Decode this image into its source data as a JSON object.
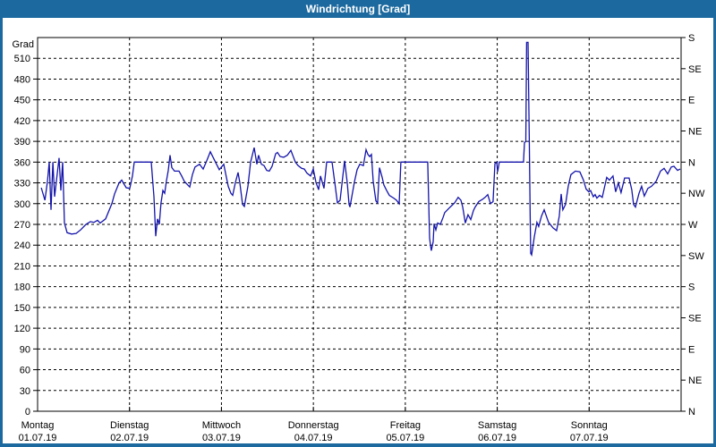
{
  "window": {
    "title": "Windrichtung [Grad]"
  },
  "colors": {
    "titlebar": "#1c699f",
    "frame": "#1c699f",
    "background": "#ffffff",
    "line": "#1414aa",
    "grid": "#000000",
    "text": "#000000"
  },
  "chart_data": {
    "type": "line",
    "title": "Windrichtung [Grad]",
    "ylabel": "Grad",
    "ylim": [
      0,
      540
    ],
    "y_tick_step": 30,
    "y_ticks_left": [
      0,
      30,
      60,
      90,
      120,
      150,
      180,
      210,
      240,
      270,
      300,
      330,
      360,
      390,
      420,
      450,
      480,
      510
    ],
    "compass_labels_bottom_to_top": [
      "N",
      "NE",
      "E",
      "SE",
      "S",
      "SW",
      "W",
      "NW",
      "N",
      "NE",
      "E",
      "SE",
      "S"
    ],
    "compass_step_deg": 45,
    "grid": "dashed",
    "x_days": [
      {
        "label": "Montag",
        "date": "01.07.19"
      },
      {
        "label": "Dienstag",
        "date": "02.07.19"
      },
      {
        "label": "Mittwoch",
        "date": "03.07.19"
      },
      {
        "label": "Donnerstag",
        "date": "04.07.19"
      },
      {
        "label": "Freitag",
        "date": "05.07.19"
      },
      {
        "label": "Samstag",
        "date": "06.07.19"
      },
      {
        "label": "Sonntag",
        "date": "07.07.19"
      }
    ],
    "series": [
      {
        "name": "Windrichtung",
        "unit": "Grad",
        "points": [
          [
            0.04,
            323
          ],
          [
            0.08,
            305
          ],
          [
            0.107,
            332
          ],
          [
            0.127,
            360
          ],
          [
            0.146,
            291
          ],
          [
            0.166,
            360
          ],
          [
            0.185,
            310
          ],
          [
            0.234,
            366
          ],
          [
            0.253,
            319
          ],
          [
            0.273,
            360
          ],
          [
            0.292,
            272
          ],
          [
            0.321,
            258
          ],
          [
            0.37,
            256
          ],
          [
            0.419,
            257
          ],
          [
            0.467,
            262
          ],
          [
            0.526,
            270
          ],
          [
            0.574,
            274
          ],
          [
            0.613,
            273
          ],
          [
            0.652,
            276
          ],
          [
            0.681,
            272
          ],
          [
            0.74,
            278
          ],
          [
            0.808,
            300
          ],
          [
            0.837,
            314
          ],
          [
            0.886,
            330
          ],
          [
            0.915,
            334
          ],
          [
            0.964,
            323
          ],
          [
            1.003,
            322
          ],
          [
            1.032,
            340
          ],
          [
            1.051,
            360
          ],
          [
            1.236,
            360
          ],
          [
            1.266,
            310
          ],
          [
            1.285,
            253
          ],
          [
            1.305,
            278
          ],
          [
            1.324,
            270
          ],
          [
            1.343,
            301
          ],
          [
            1.363,
            319
          ],
          [
            1.382,
            315
          ],
          [
            1.402,
            333
          ],
          [
            1.421,
            348
          ],
          [
            1.441,
            370
          ],
          [
            1.46,
            352
          ],
          [
            1.49,
            347
          ],
          [
            1.538,
            347
          ],
          [
            1.567,
            340
          ],
          [
            1.597,
            332
          ],
          [
            1.626,
            328
          ],
          [
            1.655,
            324
          ],
          [
            1.684,
            342
          ],
          [
            1.713,
            353
          ],
          [
            1.762,
            357
          ],
          [
            1.801,
            350
          ],
          [
            1.84,
            362
          ],
          [
            1.879,
            375
          ],
          [
            1.928,
            362
          ],
          [
            1.976,
            349
          ],
          [
            2.025,
            357
          ],
          [
            2.074,
            325
          ],
          [
            2.103,
            315
          ],
          [
            2.122,
            312
          ],
          [
            2.151,
            330
          ],
          [
            2.181,
            345
          ],
          [
            2.2,
            330
          ],
          [
            2.229,
            299
          ],
          [
            2.249,
            296
          ],
          [
            2.288,
            325
          ],
          [
            2.317,
            360
          ],
          [
            2.356,
            381
          ],
          [
            2.385,
            357
          ],
          [
            2.404,
            370
          ],
          [
            2.434,
            357
          ],
          [
            2.463,
            355
          ],
          [
            2.492,
            348
          ],
          [
            2.521,
            347
          ],
          [
            2.551,
            354
          ],
          [
            2.59,
            372
          ],
          [
            2.609,
            374
          ],
          [
            2.638,
            368
          ],
          [
            2.677,
            367
          ],
          [
            2.716,
            370
          ],
          [
            2.755,
            377
          ],
          [
            2.804,
            360
          ],
          [
            2.833,
            355
          ],
          [
            2.872,
            351
          ],
          [
            2.901,
            350
          ],
          [
            2.93,
            344
          ],
          [
            2.969,
            340
          ],
          [
            2.999,
            350
          ],
          [
            3.028,
            331
          ],
          [
            3.057,
            320
          ],
          [
            3.077,
            340
          ],
          [
            3.115,
            322
          ],
          [
            3.145,
            360
          ],
          [
            3.203,
            360
          ],
          [
            3.232,
            331
          ],
          [
            3.261,
            301
          ],
          [
            3.291,
            305
          ],
          [
            3.339,
            362
          ],
          [
            3.369,
            330
          ],
          [
            3.388,
            299
          ],
          [
            3.398,
            295
          ],
          [
            3.447,
            332
          ],
          [
            3.476,
            349
          ],
          [
            3.505,
            357
          ],
          [
            3.544,
            355
          ],
          [
            3.573,
            378
          ],
          [
            3.593,
            371
          ],
          [
            3.612,
            368
          ],
          [
            3.631,
            371
          ],
          [
            3.651,
            332
          ],
          [
            3.68,
            304
          ],
          [
            3.699,
            301
          ],
          [
            3.719,
            352
          ],
          [
            3.748,
            338
          ],
          [
            3.767,
            327
          ],
          [
            3.797,
            319
          ],
          [
            3.826,
            312
          ],
          [
            3.874,
            308
          ],
          [
            3.903,
            305
          ],
          [
            3.933,
            300
          ],
          [
            3.952,
            360
          ],
          [
            3.971,
            360
          ],
          [
            4.244,
            360
          ],
          [
            4.264,
            250
          ],
          [
            4.274,
            240
          ],
          [
            4.283,
            232
          ],
          [
            4.303,
            245
          ],
          [
            4.313,
            271
          ],
          [
            4.332,
            262
          ],
          [
            4.352,
            272
          ],
          [
            4.381,
            270
          ],
          [
            4.41,
            280
          ],
          [
            4.429,
            287
          ],
          [
            4.488,
            295
          ],
          [
            4.536,
            301
          ],
          [
            4.575,
            309
          ],
          [
            4.605,
            305
          ],
          [
            4.624,
            295
          ],
          [
            4.653,
            272
          ],
          [
            4.682,
            284
          ],
          [
            4.712,
            277
          ],
          [
            4.741,
            290
          ],
          [
            4.76,
            295
          ],
          [
            4.799,
            303
          ],
          [
            4.838,
            306
          ],
          [
            4.867,
            309
          ],
          [
            4.897,
            313
          ],
          [
            4.926,
            300
          ],
          [
            4.955,
            303
          ],
          [
            4.975,
            358
          ],
          [
            4.994,
            360
          ],
          [
            5.004,
            346
          ],
          [
            5.023,
            360
          ],
          [
            5.286,
            360
          ],
          [
            5.296,
            388
          ],
          [
            5.311,
            390
          ],
          [
            5.32,
            533
          ],
          [
            5.335,
            533
          ],
          [
            5.349,
            390
          ],
          [
            5.359,
            280
          ],
          [
            5.364,
            228
          ],
          [
            5.374,
            226
          ],
          [
            5.403,
            252
          ],
          [
            5.432,
            273
          ],
          [
            5.451,
            267
          ],
          [
            5.481,
            282
          ],
          [
            5.51,
            291
          ],
          [
            5.558,
            273
          ],
          [
            5.607,
            265
          ],
          [
            5.646,
            261
          ],
          [
            5.675,
            282
          ],
          [
            5.695,
            314
          ],
          [
            5.714,
            291
          ],
          [
            5.743,
            299
          ],
          [
            5.772,
            325
          ],
          [
            5.802,
            342
          ],
          [
            5.85,
            347
          ],
          [
            5.899,
            346
          ],
          [
            5.938,
            334
          ],
          [
            5.967,
            321
          ],
          [
            5.996,
            317
          ],
          [
            6.016,
            319
          ],
          [
            6.045,
            310
          ],
          [
            6.064,
            313
          ],
          [
            6.084,
            308
          ],
          [
            6.113,
            312
          ],
          [
            6.142,
            309
          ],
          [
            6.191,
            338
          ],
          [
            6.22,
            334
          ],
          [
            6.259,
            340
          ],
          [
            6.288,
            317
          ],
          [
            6.318,
            330
          ],
          [
            6.347,
            316
          ],
          [
            6.386,
            337
          ],
          [
            6.434,
            337
          ],
          [
            6.464,
            320
          ],
          [
            6.483,
            299
          ],
          [
            6.503,
            295
          ],
          [
            6.542,
            315
          ],
          [
            6.571,
            325
          ],
          [
            6.6,
            311
          ],
          [
            6.639,
            322
          ],
          [
            6.678,
            325
          ],
          [
            6.727,
            332
          ],
          [
            6.776,
            347
          ],
          [
            6.815,
            351
          ],
          [
            6.854,
            343
          ],
          [
            6.893,
            353
          ],
          [
            6.922,
            354
          ],
          [
            6.961,
            348
          ],
          [
            6.99,
            350
          ]
        ]
      }
    ]
  },
  "layout_note": "wind direction over one week, degrees left axis, compass right axis"
}
